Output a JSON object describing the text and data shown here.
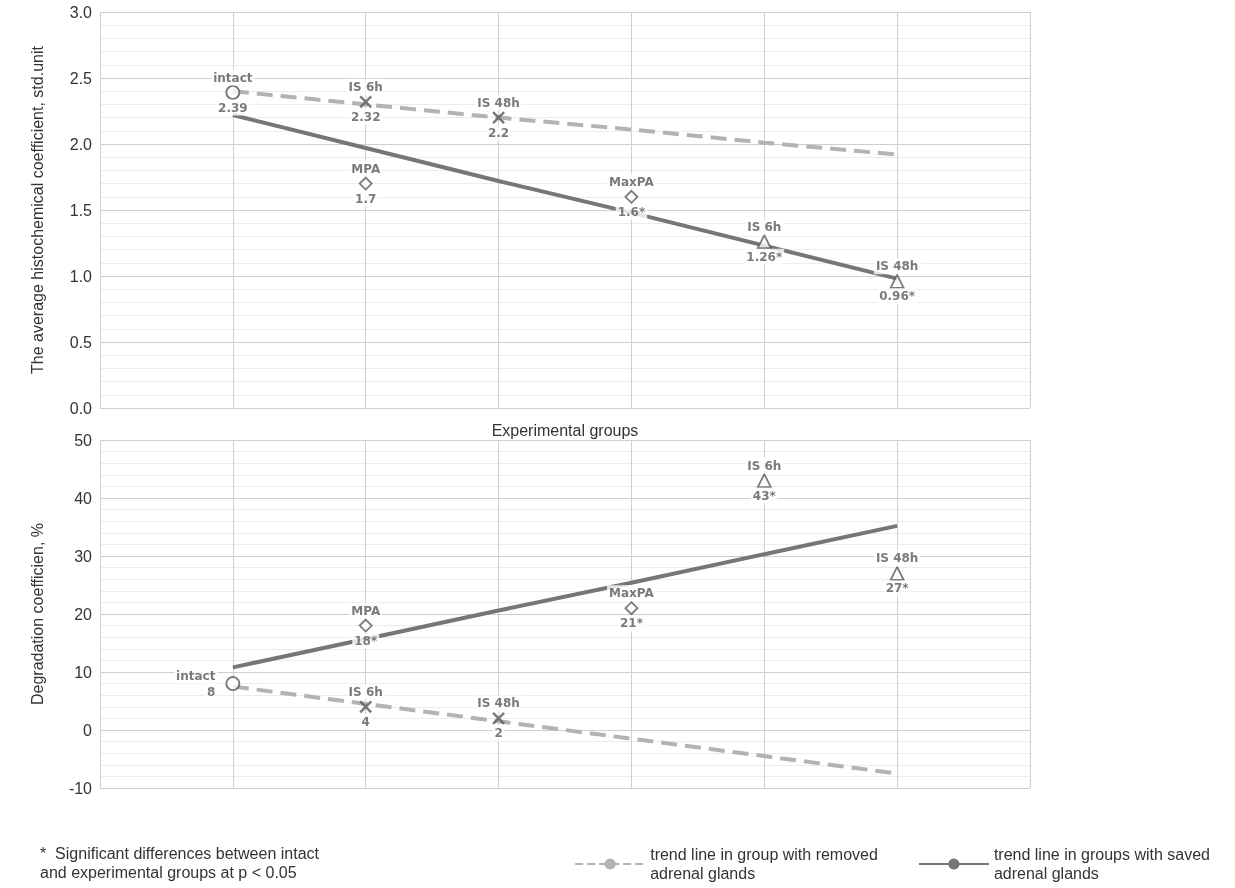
{
  "chart_data": [
    {
      "type": "scatter",
      "xlabel": "Experimental groups",
      "ylabel": "The average histochemical coefficient, std.unit",
      "categories": [
        null,
        null,
        null,
        null,
        null,
        null,
        null,
        null
      ],
      "ylim": [
        0,
        3
      ],
      "yticks": [
        {
          "value": 0,
          "label": "0.0"
        },
        {
          "value": 0.5,
          "label": "0.5"
        },
        {
          "value": 1,
          "label": "1.0"
        },
        {
          "value": 1.5,
          "label": "1.5"
        },
        {
          "value": 2,
          "label": "2.0"
        },
        {
          "value": 2.5,
          "label": "2.5"
        },
        {
          "value": 3,
          "label": "3.0"
        }
      ],
      "grid": true,
      "tick_labels": "y",
      "series": [
        {
          "type": "scatter",
          "name": "intact",
          "marker": "circle",
          "color": "#595959",
          "values": [
            null,
            2.39,
            null,
            null,
            null,
            null,
            null,
            null
          ],
          "value_labels": [
            null,
            "2.39",
            null,
            null,
            null,
            null,
            null,
            null
          ]
        },
        {
          "type": "scatter",
          "name": "IS 6h",
          "marker": "cross",
          "color": "#595959",
          "values": [
            null,
            null,
            2.32,
            null,
            null,
            null,
            null,
            null
          ],
          "value_labels": [
            null,
            null,
            "2.32",
            null,
            null,
            null,
            null,
            null
          ]
        },
        {
          "type": "scatter",
          "name": "MPA",
          "marker": "diamond",
          "color": "#595959",
          "values": [
            null,
            null,
            1.7,
            null,
            null,
            null,
            null,
            null
          ],
          "value_labels": [
            null,
            null,
            "1.7",
            null,
            null,
            null,
            null,
            null
          ]
        },
        {
          "type": "scatter",
          "name": "IS 48h",
          "marker": "cross",
          "color": "#595959",
          "values": [
            null,
            null,
            null,
            2.2,
            null,
            null,
            null,
            null
          ],
          "value_labels": [
            null,
            null,
            null,
            "2.2",
            null,
            null,
            null,
            null
          ]
        },
        {
          "type": "scatter",
          "name": "MaxPA",
          "marker": "diamond",
          "color": "#595959",
          "values": [
            null,
            null,
            null,
            null,
            1.6,
            null,
            null,
            null
          ],
          "value_labels": [
            null,
            null,
            null,
            null,
            "1.6*",
            null,
            null,
            null
          ]
        },
        {
          "type": "scatter",
          "name": "IS 6h",
          "marker": "triangle",
          "color": "#595959",
          "values": [
            null,
            null,
            null,
            null,
            null,
            1.26,
            null,
            null
          ],
          "value_labels": [
            null,
            null,
            null,
            null,
            null,
            "1.26*",
            null,
            null
          ]
        },
        {
          "type": "scatter",
          "name": "IS 48h",
          "marker": "triangle",
          "color": "#595959",
          "values": [
            null,
            null,
            null,
            null,
            null,
            null,
            0.96,
            null
          ],
          "value_labels": [
            null,
            null,
            null,
            null,
            null,
            null,
            "0.96*",
            null
          ]
        },
        {
          "type": "line",
          "color": "#b3b3b3",
          "line_style": "dashed",
          "marker": "none",
          "values": [
            null,
            2.4,
            2.3,
            2.2,
            2.11,
            2.01,
            1.92,
            null
          ]
        },
        {
          "type": "line",
          "color": "#767676",
          "line_style": "solid",
          "marker": "none",
          "values": [
            null,
            2.22,
            1.97,
            1.72,
            1.48,
            1.23,
            0.98,
            null
          ]
        }
      ]
    },
    {
      "type": "scatter",
      "ylabel": "Degradation coefficien, %",
      "categories": [
        null,
        null,
        null,
        null,
        null,
        null,
        null,
        null
      ],
      "ylim": [
        -10,
        50
      ],
      "yticks": [
        -10,
        0,
        10,
        20,
        30,
        40,
        50
      ],
      "grid": true,
      "tick_labels": "y",
      "legend": "bottom",
      "annotations": [
        "*  Significant differences between intact\nand experimental groups at p < 0.05"
      ],
      "series": [
        {
          "type": "scatter",
          "name": "intact",
          "marker": "circle",
          "color": "#595959",
          "values": [
            null,
            8,
            null,
            null,
            null,
            null,
            null,
            null
          ],
          "value_labels": [
            null,
            "8",
            null,
            null,
            null,
            null,
            null,
            null
          ]
        },
        {
          "type": "scatter",
          "name": "IS 6h",
          "marker": "cross",
          "color": "#595959",
          "values": [
            null,
            null,
            4,
            null,
            null,
            null,
            null,
            null
          ],
          "value_labels": [
            null,
            null,
            "4",
            null,
            null,
            null,
            null,
            null
          ]
        },
        {
          "type": "scatter",
          "name": "MPA",
          "marker": "diamond",
          "color": "#595959",
          "values": [
            null,
            null,
            18,
            null,
            null,
            null,
            null,
            null
          ],
          "value_labels": [
            null,
            null,
            "18*",
            null,
            null,
            null,
            null,
            null
          ]
        },
        {
          "type": "scatter",
          "name": "IS 48h",
          "marker": "cross",
          "color": "#595959",
          "values": [
            null,
            null,
            null,
            2,
            null,
            null,
            null,
            null
          ],
          "value_labels": [
            null,
            null,
            null,
            "2",
            null,
            null,
            null,
            null
          ]
        },
        {
          "type": "scatter",
          "name": "MaxPA",
          "marker": "diamond",
          "color": "#595959",
          "values": [
            null,
            null,
            null,
            null,
            21,
            null,
            null,
            null
          ],
          "value_labels": [
            null,
            null,
            null,
            null,
            "21*",
            null,
            null,
            null
          ]
        },
        {
          "type": "scatter",
          "name": "IS 6h",
          "marker": "triangle",
          "color": "#595959",
          "values": [
            null,
            null,
            null,
            null,
            null,
            43,
            null,
            null
          ],
          "value_labels": [
            null,
            null,
            null,
            null,
            null,
            "43*",
            null,
            null
          ]
        },
        {
          "type": "scatter",
          "name": "IS 48h",
          "marker": "triangle",
          "color": "#595959",
          "values": [
            null,
            null,
            null,
            null,
            null,
            null,
            27,
            null
          ],
          "value_labels": [
            null,
            null,
            null,
            null,
            null,
            null,
            "27*",
            null
          ]
        },
        {
          "type": "line",
          "name": "trend line in group with removed\nadrenal glands",
          "color": "#b3b3b3",
          "line_style": "dashed",
          "marker": "none",
          "values": [
            null,
            7.5,
            4.5,
            1.5,
            -1.5,
            -4.5,
            -7.5,
            null
          ]
        },
        {
          "type": "line",
          "name": "trend line in groups with saved\nadrenal glands",
          "color": "#767676",
          "line_style": "solid",
          "marker": "none",
          "values": [
            null,
            10.8,
            15.7,
            20.6,
            25.4,
            30.3,
            35.2,
            null
          ]
        }
      ]
    }
  ]
}
